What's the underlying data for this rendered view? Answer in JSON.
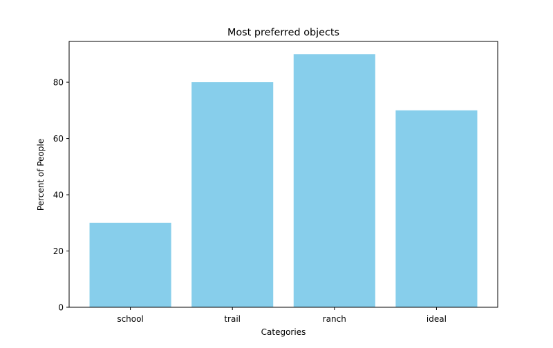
{
  "chart_data": {
    "type": "bar",
    "title": "Most preferred objects",
    "xlabel": "Categories",
    "ylabel": "Percent of People",
    "categories": [
      "school",
      "trail",
      "ranch",
      "ideal"
    ],
    "values": [
      30,
      80,
      90,
      70
    ],
    "ylim": [
      0,
      94.5
    ],
    "yticks": [
      0,
      20,
      40,
      60,
      80
    ],
    "bar_color": "#87CEEB",
    "grid": false,
    "legend": "none"
  }
}
